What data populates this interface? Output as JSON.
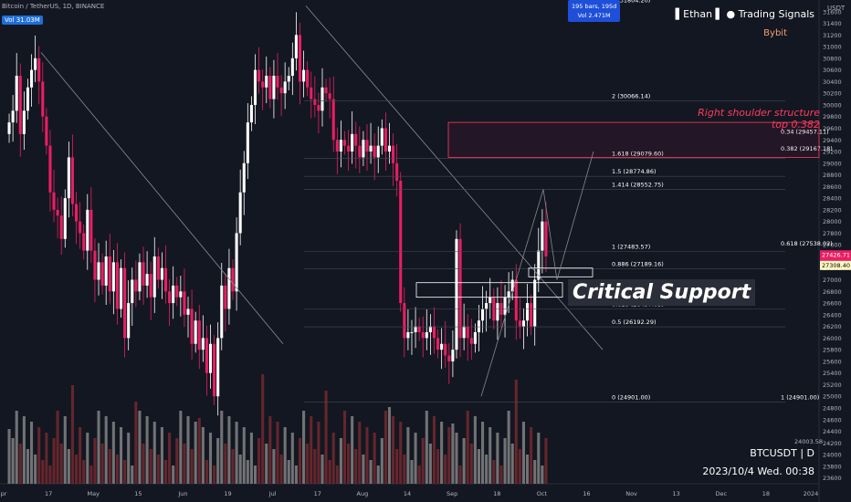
{
  "header": {
    "pair": "Bitcoin / TetherUS, 1D, BINANCE",
    "vol": "Vol 31.03M"
  },
  "brand": {
    "name": "▌Ethan ▌ ● Trading Signals",
    "exchange": "Bybit"
  },
  "measure_box": {
    "line1": "195 bars, 195d",
    "line2": "Vol 2.471M"
  },
  "annotation_right_shoulder": {
    "line1": "Right shoulder structure",
    "line2": "top 0.382"
  },
  "callout": "Critical Support",
  "symbol_label": "BTCUSDT | D",
  "timestamp": "2023/10/4 Wed. 00:38",
  "colors": {
    "bg": "#131722",
    "up": "#ffffff",
    "down": "#e91e63",
    "vol_up": "#8a8a8a",
    "vol_down": "#7a2a2f",
    "accent": "#ff3b5c"
  },
  "chart_data": {
    "type": "candlestick",
    "currency": "USDT",
    "y_axis_ticks": [
      23600,
      23800,
      24000,
      24200,
      24400,
      24600,
      24800,
      25000,
      25200,
      25400,
      25600,
      25800,
      26000,
      26200,
      26400,
      26600,
      26800,
      27000,
      27200,
      27400,
      27600,
      27800,
      28000,
      28200,
      28400,
      28600,
      28800,
      29000,
      29200,
      29400,
      29600,
      29800,
      30000,
      30200,
      30400,
      30600,
      30800,
      31000,
      31200,
      31400,
      31600
    ],
    "ylim": [
      23500,
      31800
    ],
    "x_axis_ticks": [
      "pr",
      "17",
      "May",
      "15",
      "Jun",
      "19",
      "Jul",
      "17",
      "Aug",
      "14",
      "Sep",
      "18",
      "Oct",
      "16",
      "Nov",
      "13",
      "Dec",
      "18",
      "2024"
    ],
    "price_badges": [
      {
        "label": "27426.71",
        "value": 27426.71,
        "color": "#e91e63"
      },
      {
        "label": "07:21:00",
        "value": 27310,
        "color": "#e91e63"
      },
      {
        "label": "27308.40",
        "value": 27308.4,
        "color": "#fff9c4"
      }
    ],
    "top_label": "0 (31804.20)",
    "fib_left": [
      {
        "label": "2 (30066.14)",
        "value": 30066.14
      },
      {
        "label": "1.618 (29079.60)",
        "value": 29079.6
      },
      {
        "label": "1.5 (28774.86)",
        "value": 28774.86
      },
      {
        "label": "1.414 (28552.75)",
        "value": 28552.75
      },
      {
        "label": "1 (27483.57)",
        "value": 27483.57
      },
      {
        "label": "0.886 (27189.16)",
        "value": 27189.16
      },
      {
        "label": "0.618 (26497.03)",
        "value": 26497.03
      },
      {
        "label": "0.5 (26192.29)",
        "value": 26192.29
      },
      {
        "label": "0 (24901.00)",
        "value": 24901.0
      }
    ],
    "fib_right": [
      {
        "label": "0.34 (29457.11)",
        "value": 29457.11
      },
      {
        "label": "0.382 (29167.18)",
        "value": 29167.18
      },
      {
        "label": "0.618 (27538.02)",
        "value": 27538.02
      },
      {
        "label": "1 (24901.00)",
        "value": 24901.0
      }
    ],
    "volume_label": "24003.58",
    "closes": [
      29700,
      29900,
      30500,
      29500,
      29900,
      30300,
      30600,
      30800,
      30400,
      29800,
      29300,
      28500,
      28200,
      28100,
      27700,
      28400,
      29100,
      28300,
      28000,
      27800,
      27500,
      28200,
      27500,
      27000,
      27300,
      26900,
      27400,
      26800,
      27300,
      26500,
      27200,
      26000,
      26600,
      27000,
      26800,
      27300,
      26900,
      27100,
      26700,
      27400,
      27000,
      27200,
      26800,
      26600,
      26900,
      26700,
      26800,
      26400,
      26500,
      25900,
      26300,
      25800,
      26000,
      25400,
      25900,
      25000,
      26000,
      26900,
      26500,
      27200,
      26800,
      27800,
      28500,
      29000,
      29700,
      30000,
      30600,
      30400,
      30300,
      30500,
      30100,
      30500,
      30300,
      30200,
      30400,
      30500,
      30800,
      31200,
      30400,
      30600,
      30300,
      30100,
      30000,
      29900,
      30300,
      30200,
      30100,
      29400,
      29200,
      29400,
      29300,
      29200,
      29500,
      29300,
      29100,
      29400,
      29200,
      29300,
      29100,
      29300,
      29600,
      29200,
      29300,
      29000,
      28700,
      26600,
      26000,
      26100,
      26100,
      26200,
      26100,
      26000,
      26100,
      26200,
      26000,
      25800,
      25900,
      25700,
      25600,
      25800,
      27700,
      26000,
      26200,
      26000,
      25900,
      26100,
      26300,
      26500,
      26600,
      26700,
      26300,
      26600,
      26400,
      26700,
      26800,
      27000,
      26300,
      26200,
      26300,
      26600,
      26200,
      27000,
      27500,
      28000,
      27400
    ]
  }
}
